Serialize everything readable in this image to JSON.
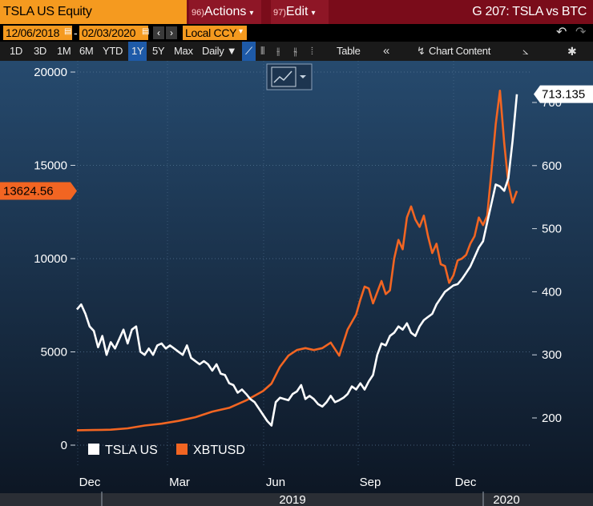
{
  "header": {
    "ticker": "TSLA US Equity",
    "actions_num": "96)",
    "actions_label": "Actions",
    "edit_num": "97)",
    "edit_label": "Edit",
    "title": "G 207: TSLA vs BTC"
  },
  "daterow": {
    "start_date": "12/06/2018",
    "end_date": "02/03/2020",
    "currency": "Local CCY"
  },
  "toolbar": {
    "periods": [
      "1D",
      "3D",
      "1M",
      "6M",
      "YTD",
      "1Y",
      "5Y",
      "Max"
    ],
    "active_period": "1Y",
    "frequency": "Daily",
    "table_label": "Table",
    "chart_content_label": "Chart Content"
  },
  "colors": {
    "tsla": "#ffffff",
    "btc": "#f26522",
    "accent": "#f59a1f",
    "header_bg": "#7a0c1a",
    "plot_top": "#264a6e",
    "plot_bottom": "#0c1522"
  },
  "chart_data": {
    "type": "line",
    "x_ticks": [
      "Dec",
      "Mar",
      "Jun",
      "Sep",
      "Dec"
    ],
    "x_years": [
      "2019",
      "2020"
    ],
    "y_left": {
      "ticks": [
        0,
        5000,
        10000,
        15000,
        20000
      ],
      "range": [
        -200,
        20200
      ]
    },
    "y_right": {
      "ticks": [
        200,
        300,
        400,
        500,
        600,
        700
      ],
      "range": [
        154,
        722
      ]
    },
    "last_value_left_label": "13624.56",
    "last_value_right_label": "713.135",
    "legend": "bottom-left",
    "series": [
      {
        "name": "TSLA US",
        "axis": "right",
        "color": "#ffffff",
        "points": [
          [
            0,
            372
          ],
          [
            1,
            380
          ],
          [
            2,
            365
          ],
          [
            3,
            345
          ],
          [
            4,
            338
          ],
          [
            5,
            312
          ],
          [
            6,
            330
          ],
          [
            7,
            300
          ],
          [
            8,
            320
          ],
          [
            9,
            310
          ],
          [
            10,
            325
          ],
          [
            11,
            340
          ],
          [
            12,
            318
          ],
          [
            13,
            340
          ],
          [
            14,
            345
          ],
          [
            15,
            305
          ],
          [
            16,
            300
          ],
          [
            17,
            310
          ],
          [
            18,
            300
          ],
          [
            19,
            315
          ],
          [
            20,
            318
          ],
          [
            21,
            310
          ],
          [
            22,
            315
          ],
          [
            23,
            310
          ],
          [
            24,
            305
          ],
          [
            25,
            300
          ],
          [
            26,
            315
          ],
          [
            27,
            295
          ],
          [
            28,
            290
          ],
          [
            29,
            285
          ],
          [
            30,
            290
          ],
          [
            31,
            285
          ],
          [
            32,
            275
          ],
          [
            33,
            285
          ],
          [
            34,
            270
          ],
          [
            35,
            268
          ],
          [
            36,
            255
          ],
          [
            37,
            252
          ],
          [
            38,
            240
          ],
          [
            39,
            245
          ],
          [
            40,
            238
          ],
          [
            41,
            230
          ],
          [
            42,
            225
          ],
          [
            43,
            215
          ],
          [
            44,
            205
          ],
          [
            45,
            195
          ],
          [
            46,
            188
          ],
          [
            47,
            225
          ],
          [
            48,
            232
          ],
          [
            49,
            230
          ],
          [
            50,
            228
          ],
          [
            51,
            238
          ],
          [
            52,
            242
          ],
          [
            53,
            252
          ],
          [
            54,
            230
          ],
          [
            55,
            235
          ],
          [
            56,
            230
          ],
          [
            57,
            222
          ],
          [
            58,
            218
          ],
          [
            59,
            225
          ],
          [
            60,
            235
          ],
          [
            61,
            225
          ],
          [
            62,
            228
          ],
          [
            63,
            232
          ],
          [
            64,
            238
          ],
          [
            65,
            250
          ],
          [
            66,
            245
          ],
          [
            67,
            255
          ],
          [
            68,
            245
          ],
          [
            69,
            258
          ],
          [
            70,
            268
          ],
          [
            71,
            300
          ],
          [
            72,
            318
          ],
          [
            73,
            315
          ],
          [
            74,
            330
          ],
          [
            75,
            335
          ],
          [
            76,
            345
          ],
          [
            77,
            340
          ],
          [
            78,
            350
          ],
          [
            79,
            335
          ],
          [
            80,
            330
          ],
          [
            81,
            345
          ],
          [
            82,
            355
          ],
          [
            83,
            360
          ],
          [
            84,
            365
          ],
          [
            85,
            380
          ],
          [
            86,
            390
          ],
          [
            87,
            400
          ],
          [
            88,
            405
          ],
          [
            89,
            410
          ],
          [
            90,
            412
          ],
          [
            91,
            420
          ],
          [
            92,
            430
          ],
          [
            93,
            440
          ],
          [
            94,
            455
          ],
          [
            95,
            470
          ],
          [
            96,
            480
          ],
          [
            97,
            510
          ],
          [
            98,
            540
          ],
          [
            99,
            570
          ],
          [
            100,
            567
          ],
          [
            101,
            560
          ],
          [
            102,
            580
          ],
          [
            103,
            640
          ],
          [
            104,
            713
          ]
        ]
      },
      {
        "name": "XBTUSD",
        "axis": "left",
        "color": "#f26522",
        "points": [
          [
            0,
            800
          ],
          [
            4,
            810
          ],
          [
            8,
            830
          ],
          [
            12,
            900
          ],
          [
            16,
            1050
          ],
          [
            20,
            1150
          ],
          [
            24,
            1300
          ],
          [
            28,
            1500
          ],
          [
            32,
            1800
          ],
          [
            36,
            2000
          ],
          [
            40,
            2400
          ],
          [
            44,
            2900
          ],
          [
            46,
            3300
          ],
          [
            48,
            4200
          ],
          [
            50,
            4800
          ],
          [
            52,
            5100
          ],
          [
            54,
            5200
          ],
          [
            56,
            5100
          ],
          [
            58,
            5200
          ],
          [
            60,
            5500
          ],
          [
            62,
            4800
          ],
          [
            64,
            6200
          ],
          [
            66,
            7000
          ],
          [
            67,
            7800
          ],
          [
            68,
            8500
          ],
          [
            69,
            8400
          ],
          [
            70,
            7600
          ],
          [
            71,
            8200
          ],
          [
            72,
            8800
          ],
          [
            73,
            8100
          ],
          [
            74,
            8300
          ],
          [
            75,
            10000
          ],
          [
            76,
            11000
          ],
          [
            77,
            10500
          ],
          [
            78,
            12200
          ],
          [
            79,
            12800
          ],
          [
            80,
            12100
          ],
          [
            81,
            11700
          ],
          [
            82,
            12300
          ],
          [
            83,
            11200
          ],
          [
            84,
            10300
          ],
          [
            85,
            10800
          ],
          [
            86,
            9700
          ],
          [
            87,
            9600
          ],
          [
            88,
            8700
          ],
          [
            89,
            9100
          ],
          [
            90,
            9900
          ],
          [
            91,
            10000
          ],
          [
            92,
            10200
          ],
          [
            93,
            10800
          ],
          [
            94,
            11200
          ],
          [
            95,
            12200
          ],
          [
            96,
            11800
          ],
          [
            97,
            12300
          ],
          [
            98,
            14700
          ],
          [
            99,
            17200
          ],
          [
            100,
            19000
          ],
          [
            101,
            16200
          ],
          [
            102,
            14000
          ],
          [
            103,
            13000
          ],
          [
            104,
            13625
          ]
        ]
      }
    ]
  }
}
